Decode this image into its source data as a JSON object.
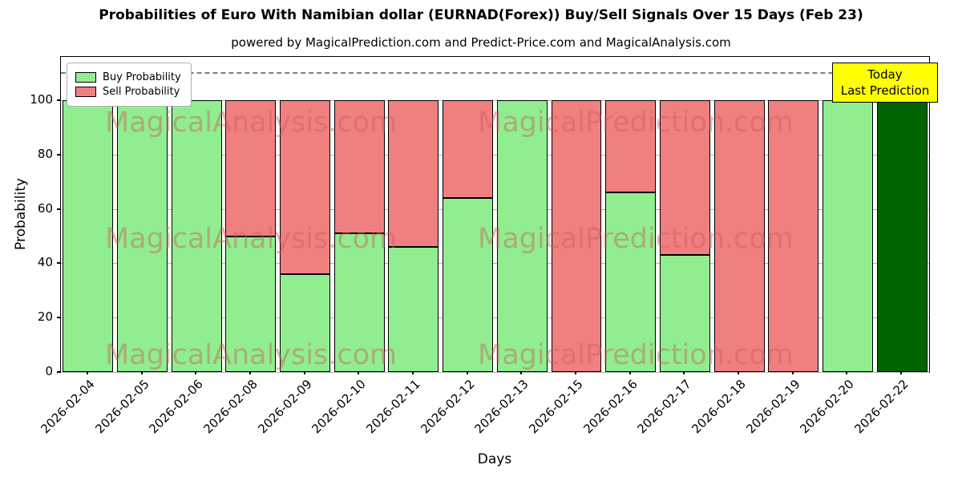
{
  "header": {
    "title": "Probabilities of Euro With Namibian dollar (EURNAD(Forex)) Buy/Sell Signals Over 15 Days (Feb 23)",
    "subtitle": "powered by MagicalPrediction.com and Predict-Price.com and MagicalAnalysis.com"
  },
  "annotation": {
    "line1": "Today",
    "line2": "Last Prediction",
    "bg": "#ffff00"
  },
  "watermarks": {
    "left": "MagicalAnalysis.com",
    "right": "MagicalPrediction.com",
    "color": "#cd5c5c"
  },
  "chart_data": {
    "type": "bar",
    "stacked": true,
    "title": "Probabilities of Euro With Namibian dollar (EURNAD(Forex)) Buy/Sell Signals Over 15 Days (Feb 23)",
    "xlabel": "Days",
    "ylabel": "Probability",
    "categories": [
      "2026-02-04",
      "2026-02-05",
      "2026-02-06",
      "2026-02-08",
      "2026-02-09",
      "2026-02-10",
      "2026-02-11",
      "2026-02-12",
      "2026-02-13",
      "2026-02-15",
      "2026-02-16",
      "2026-02-17",
      "2026-02-18",
      "2026-02-19",
      "2026-02-20",
      "2026-02-22"
    ],
    "series": [
      {
        "name": "Buy Probability",
        "color": "#90ee90",
        "values": [
          100,
          100,
          100,
          50,
          36,
          51,
          46,
          64,
          100,
          0,
          66,
          43,
          0,
          0,
          100,
          100
        ]
      },
      {
        "name": "Sell Probability",
        "color": "#f08080",
        "values": [
          0,
          0,
          0,
          50,
          64,
          49,
          54,
          36,
          0,
          100,
          34,
          57,
          100,
          100,
          0,
          0
        ]
      }
    ],
    "last_bar_color": "#006400",
    "ylim": [
      0,
      116
    ],
    "yticks": [
      0,
      20,
      40,
      60,
      80,
      100
    ],
    "dashed_line_y": 110.5,
    "grid": "y",
    "legend_position": "upper-left"
  }
}
